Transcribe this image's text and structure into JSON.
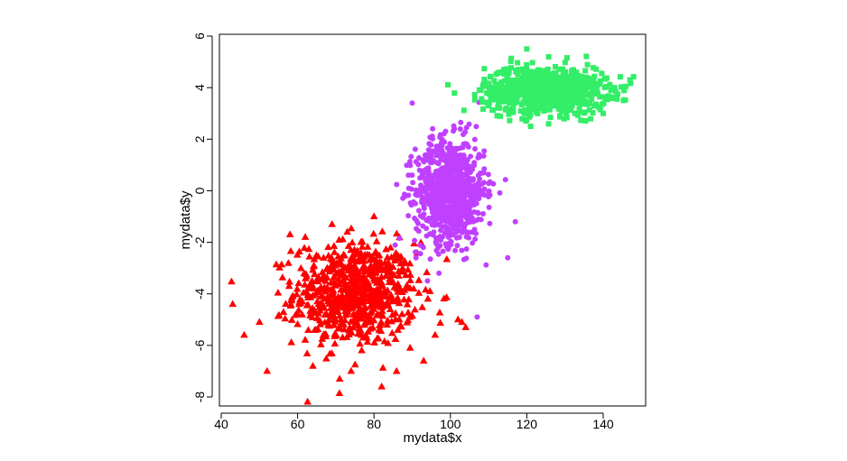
{
  "chart_data": {
    "type": "scatter",
    "title": "",
    "xlabel": "mydata$x",
    "ylabel": "mydata$y",
    "xlim": [
      40,
      150
    ],
    "ylim": [
      -8,
      6
    ],
    "x_ticks": [
      40,
      60,
      80,
      100,
      120,
      140
    ],
    "y_ticks": [
      -8,
      -6,
      -4,
      -2,
      0,
      2,
      4,
      6
    ],
    "grid": false,
    "legend": "none",
    "series": [
      {
        "marker": "triangle",
        "color": "#FF0000",
        "n": 700,
        "center": [
          75,
          -4
        ],
        "spread": [
          8,
          1
        ],
        "extra_points": [
          [
            43,
            -4.4
          ],
          [
            46,
            -5.6
          ],
          [
            50,
            -5.1
          ],
          [
            58,
            -1.7
          ],
          [
            62,
            -1.8
          ],
          [
            69,
            -1.3
          ],
          [
            73,
            -1.6
          ],
          [
            80,
            -1.0
          ],
          [
            82,
            -7.6
          ],
          [
            74,
            -7.0
          ],
          [
            71,
            -7.3
          ],
          [
            64,
            -6.8
          ],
          [
            52,
            -7.0
          ],
          [
            93,
            -6.6
          ],
          [
            96,
            -5.6
          ],
          [
            102,
            -5.0
          ],
          [
            103,
            -5.1
          ],
          [
            104,
            -5.3
          ]
        ]
      },
      {
        "marker": "circle",
        "color": "#C040FF",
        "n": 900,
        "center": [
          100,
          0
        ],
        "spread": [
          4.5,
          1
        ],
        "extra_points": [
          [
            90,
            3.4
          ],
          [
            115,
            -2.6
          ],
          [
            117,
            -1.2
          ],
          [
            94,
            -3.5
          ],
          [
            97,
            -3.2
          ],
          [
            91,
            -2.6
          ],
          [
            107,
            -4.9
          ],
          [
            89,
            0.6
          ]
        ]
      },
      {
        "marker": "square",
        "color": "#33EE66",
        "n": 800,
        "center": [
          125,
          3.9
        ],
        "spread": [
          8,
          0.45
        ],
        "extra_points": [
          [
            108,
            3.9
          ],
          [
            147,
            4.3
          ],
          [
            143,
            4.0
          ],
          [
            120,
            5.5
          ],
          [
            114,
            4.7
          ],
          [
            121,
            2.5
          ],
          [
            131,
            3.2
          ],
          [
            110,
            3.3
          ],
          [
            140,
            3.0
          ]
        ]
      }
    ]
  }
}
